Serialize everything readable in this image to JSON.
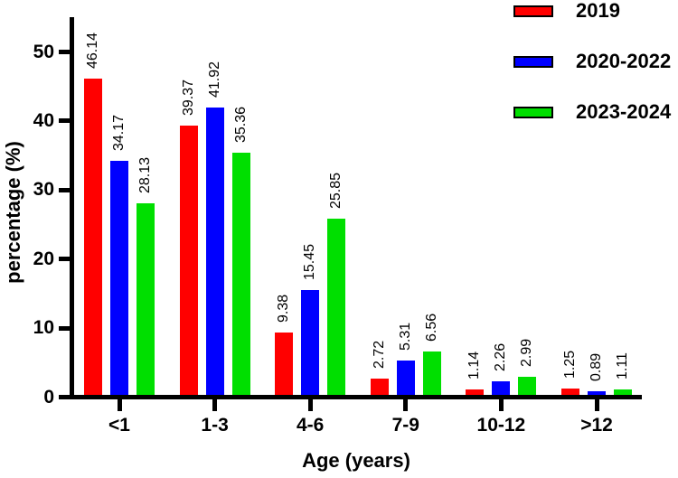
{
  "figure": {
    "background": "#ffffff",
    "text_color": "#000000",
    "axis_color": "#000000"
  },
  "chart_data": {
    "type": "bar",
    "title": "",
    "xlabel": "Age (years)",
    "ylabel": "percentage (%)",
    "categories": [
      "<1",
      "1-3",
      "4-6",
      "7-9",
      "10-12",
      ">12"
    ],
    "series": [
      {
        "name": "2019",
        "color": "#FF0000",
        "values": [
          46.14,
          39.37,
          9.38,
          2.72,
          1.14,
          1.25
        ]
      },
      {
        "name": "2020-2022",
        "color": "#0000FF",
        "values": [
          34.17,
          41.92,
          15.45,
          5.31,
          2.26,
          0.89
        ]
      },
      {
        "name": "2023-2024",
        "color": "#00DF00",
        "values": [
          28.13,
          35.36,
          25.85,
          6.56,
          2.99,
          1.11
        ]
      }
    ],
    "yticks": [
      0,
      10,
      20,
      30,
      40,
      50
    ],
    "ylim": [
      0,
      55
    ],
    "grid": false,
    "legend_position": "top-right",
    "value_labels": "each bar labeled with its value, rotated 90° above bar"
  }
}
